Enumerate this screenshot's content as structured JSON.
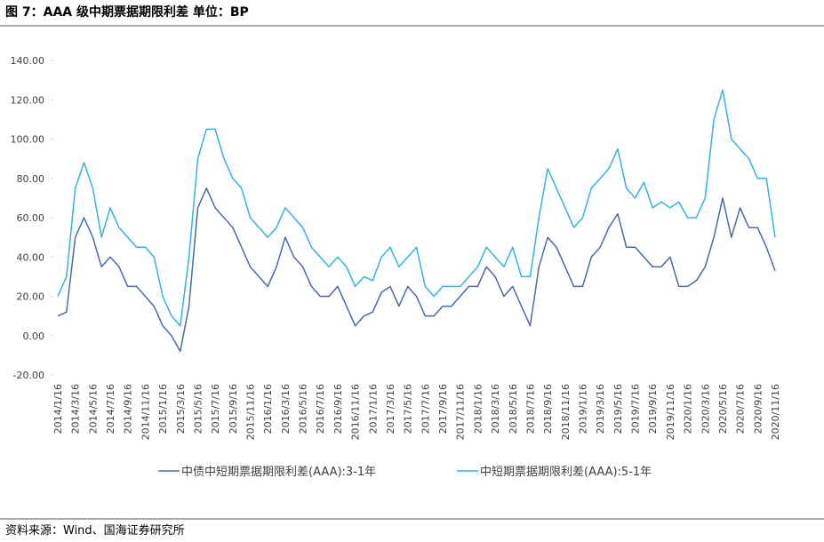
{
  "chart_data": {
    "type": "line",
    "title": "图 7：AAA 级中期票据期限利差    单位：BP",
    "source": "资料来源：Wind、国海证券研究所",
    "categories": [
      "2014/1/16",
      null,
      "2014/3/16",
      null,
      "2014/5/16",
      null,
      "2014/7/16",
      null,
      "2014/9/16",
      null,
      "2014/11/16",
      null,
      "2015/1/16",
      null,
      "2015/3/16",
      null,
      "2015/5/16",
      null,
      "2015/7/16",
      null,
      "2015/9/16",
      null,
      "2015/11/16",
      null,
      "2016/1/16",
      null,
      "2016/3/16",
      null,
      "2016/5/16",
      null,
      "2016/7/16",
      null,
      "2016/9/16",
      null,
      "2016/11/16",
      null,
      "2017/1/16",
      null,
      "2017/3/16",
      null,
      "2017/5/16",
      null,
      "2017/7/16",
      null,
      "2017/9/16",
      null,
      "2017/11/16",
      null,
      "2018/1/16",
      null,
      "2018/3/16",
      null,
      "2018/5/16",
      null,
      "2018/7/16",
      null,
      "2018/9/16",
      null,
      "2018/11/16",
      null,
      "2019/1/16",
      null,
      "2019/3/16",
      null,
      "2019/5/16",
      null,
      "2019/7/16",
      null,
      "2019/9/16",
      null,
      "2019/11/16",
      null,
      "2020/1/16",
      null,
      "2020/3/16",
      null,
      "2020/5/16",
      null,
      "2020/7/16",
      null,
      "2020/9/16",
      null,
      "2020/11/16"
    ],
    "series": [
      {
        "name": "中债中短期票据期限利差(AAA):3-1年",
        "color": "#4a68b0",
        "values": [
          10,
          12,
          50,
          60,
          50,
          35,
          40,
          35,
          25,
          25,
          20,
          15,
          5,
          0,
          -8,
          15,
          65,
          75,
          65,
          60,
          55,
          45,
          35,
          30,
          25,
          35,
          50,
          40,
          35,
          25,
          20,
          20,
          25,
          15,
          5,
          10,
          12,
          22,
          25,
          15,
          25,
          20,
          10,
          10,
          15,
          15,
          20,
          25,
          25,
          35,
          30,
          20,
          25,
          15,
          5,
          35,
          50,
          45,
          35,
          25,
          25,
          40,
          45,
          55,
          62,
          45,
          45,
          40,
          35,
          35,
          40,
          25,
          25,
          28,
          35,
          50,
          70,
          50,
          65,
          55,
          55,
          45,
          33
        ]
      },
      {
        "name": "中短期票据期限利差(AAA):5-1年",
        "color": "#2fb4e4",
        "values": [
          20,
          30,
          75,
          88,
          75,
          50,
          65,
          55,
          50,
          45,
          45,
          40,
          20,
          10,
          5,
          40,
          90,
          105,
          105,
          90,
          80,
          75,
          60,
          55,
          50,
          55,
          65,
          60,
          55,
          45,
          40,
          35,
          40,
          35,
          25,
          30,
          28,
          40,
          45,
          35,
          40,
          45,
          25,
          20,
          25,
          25,
          25,
          30,
          35,
          45,
          40,
          35,
          45,
          30,
          30,
          60,
          85,
          75,
          65,
          55,
          60,
          75,
          80,
          85,
          95,
          75,
          70,
          78,
          65,
          68,
          65,
          68,
          60,
          60,
          70,
          110,
          125,
          100,
          95,
          90,
          80,
          80,
          50
        ]
      }
    ],
    "ylim": [
      -20,
      140
    ],
    "yticks": [
      {
        "value": -20,
        "label": "-20.00"
      },
      {
        "value": 0,
        "label": "0.00"
      },
      {
        "value": 20,
        "label": "20.00"
      },
      {
        "value": 40,
        "label": "40.00"
      },
      {
        "value": 60,
        "label": "60.00"
      },
      {
        "value": 80,
        "label": "80.00"
      },
      {
        "value": 100,
        "label": "100.00"
      },
      {
        "value": 120,
        "label": "120.00"
      },
      {
        "value": 140,
        "label": "140.00"
      }
    ],
    "grid": false
  }
}
